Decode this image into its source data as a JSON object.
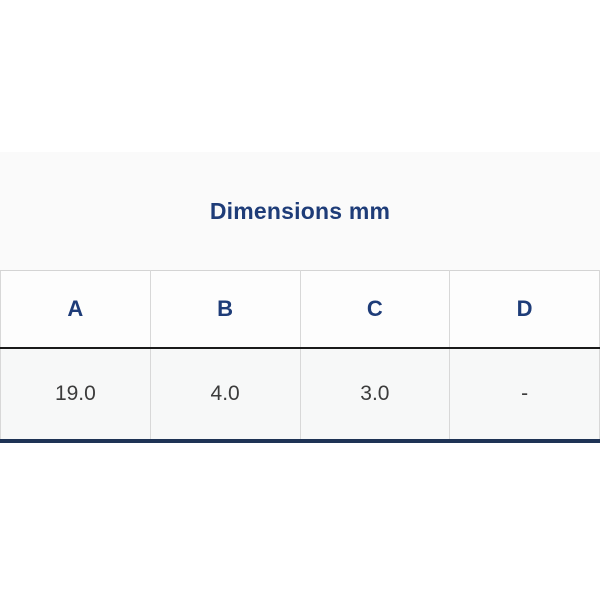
{
  "section_title": "Dimensions mm",
  "table": {
    "columns": [
      "A",
      "B",
      "C",
      "D"
    ],
    "rows": [
      [
        "19.0",
        "4.0",
        "3.0",
        "-"
      ]
    ]
  },
  "colors": {
    "heading_navy": "#1e3c78",
    "accent_bar_navy": "#1e3355",
    "header_underline": "#1a1a1a",
    "cell_text": "#3c3c3c",
    "grid_line": "#d8d8d8",
    "section_bg": "#fafafa",
    "header_row_bg": "#fdfdfd",
    "data_row_bg": "#f7f8f8"
  }
}
